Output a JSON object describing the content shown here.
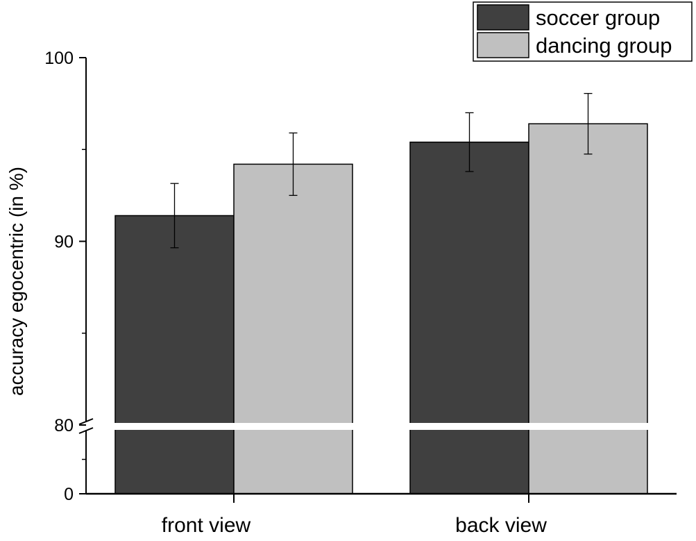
{
  "chart_data": {
    "type": "bar",
    "categories": [
      "front view",
      "back view"
    ],
    "series": [
      {
        "name": "soccer group",
        "values": [
          91.4,
          95.4
        ],
        "errors": [
          1.75,
          1.6
        ],
        "color": "#404040"
      },
      {
        "name": "dancing group",
        "values": [
          94.2,
          96.4
        ],
        "errors": [
          1.7,
          1.65
        ],
        "color": "#c0c0c0"
      }
    ],
    "xlabel": "",
    "ylabel": "accuracy egocentric (in %)",
    "y_axis": {
      "broken": true,
      "lower_segment": {
        "range": [
          0,
          80
        ],
        "ticks": [
          0
        ]
      },
      "upper_segment": {
        "range": [
          80,
          100
        ],
        "ticks": [
          80,
          90,
          100
        ]
      }
    },
    "grid": false,
    "legend_position": "top-right"
  }
}
